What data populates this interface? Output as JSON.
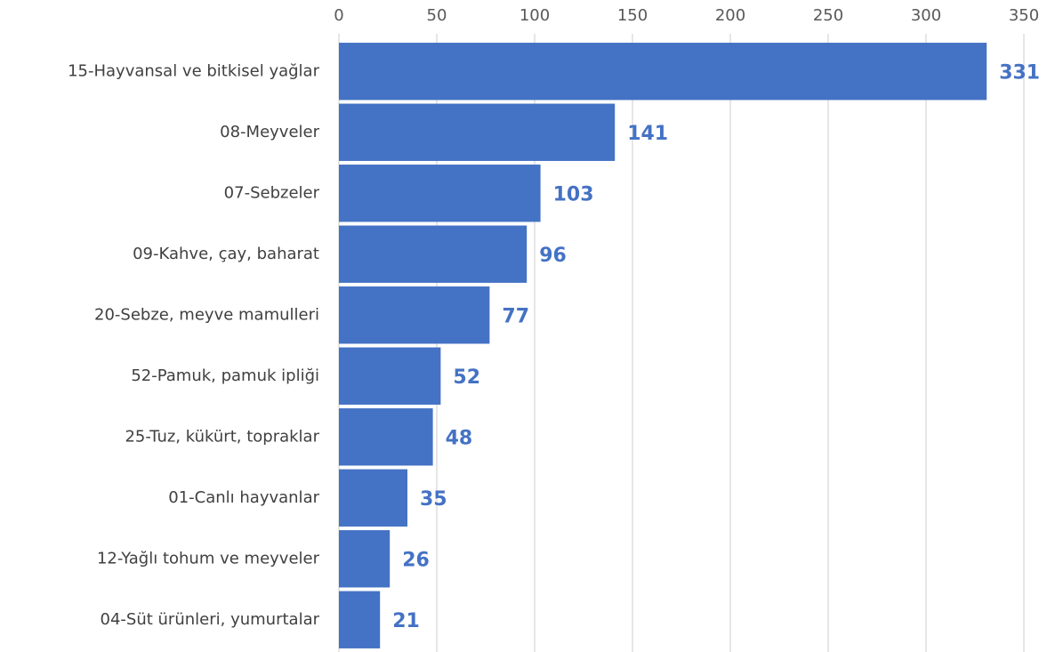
{
  "chart_data": {
    "type": "bar",
    "orientation": "horizontal",
    "categories": [
      "15-Hayvansal ve bitkisel yağlar",
      "08-Meyveler",
      "07-Sebzeler",
      "09-Kahve, çay, baharat",
      "20-Sebze, meyve mamulleri",
      "52-Pamuk, pamuk ipliği",
      "25-Tuz, kükürt, topraklar",
      "01-Canlı hayvanlar",
      "12-Yağlı tohum ve meyveler",
      "04-Süt ürünleri, yumurtalar"
    ],
    "values": [
      331,
      141,
      103,
      96,
      77,
      52,
      48,
      35,
      26,
      21
    ],
    "color": "#4472c4",
    "xlim": [
      0,
      350
    ],
    "xticks": [
      0,
      50,
      100,
      150,
      200,
      250,
      300,
      350
    ],
    "grid": true
  }
}
